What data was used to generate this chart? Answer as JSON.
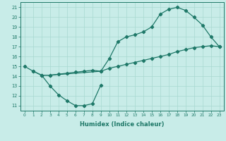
{
  "xlabel": "Humidex (Indice chaleur)",
  "bg_color": "#c8ece8",
  "grid_color": "#a8d8d0",
  "line_color": "#1e7868",
  "xlim": [
    -0.5,
    23.5
  ],
  "ylim": [
    10.5,
    21.5
  ],
  "yticks": [
    11,
    12,
    13,
    14,
    15,
    16,
    17,
    18,
    19,
    20,
    21
  ],
  "xticks": [
    0,
    1,
    2,
    3,
    4,
    5,
    6,
    7,
    8,
    9,
    10,
    11,
    12,
    13,
    14,
    15,
    16,
    17,
    18,
    19,
    20,
    21,
    22,
    23
  ],
  "line1_x": [
    0,
    1,
    2,
    3,
    4,
    5,
    6,
    7,
    8,
    9
  ],
  "line1_y": [
    15.0,
    14.5,
    14.1,
    13.0,
    12.1,
    11.5,
    11.0,
    11.0,
    11.2,
    13.1
  ],
  "line2_x": [
    1,
    2,
    3,
    4,
    5,
    6,
    7,
    8,
    9,
    10,
    11,
    12,
    13,
    14,
    15,
    16,
    17,
    18,
    19,
    20,
    21,
    22,
    23
  ],
  "line2_y": [
    14.5,
    14.1,
    14.1,
    14.2,
    14.3,
    14.4,
    14.5,
    14.6,
    14.5,
    14.8,
    15.0,
    15.2,
    15.4,
    15.6,
    15.8,
    16.0,
    16.2,
    16.5,
    16.7,
    16.9,
    17.0,
    17.1,
    17.0
  ],
  "line3_x": [
    2,
    3,
    9,
    10,
    11,
    12,
    13,
    14,
    15,
    16,
    17,
    18,
    19,
    20,
    21,
    22,
    23
  ],
  "line3_y": [
    14.1,
    14.1,
    14.5,
    15.8,
    17.5,
    18.0,
    18.2,
    18.5,
    19.0,
    20.3,
    20.8,
    21.0,
    20.7,
    20.0,
    19.2,
    18.0,
    17.0
  ]
}
